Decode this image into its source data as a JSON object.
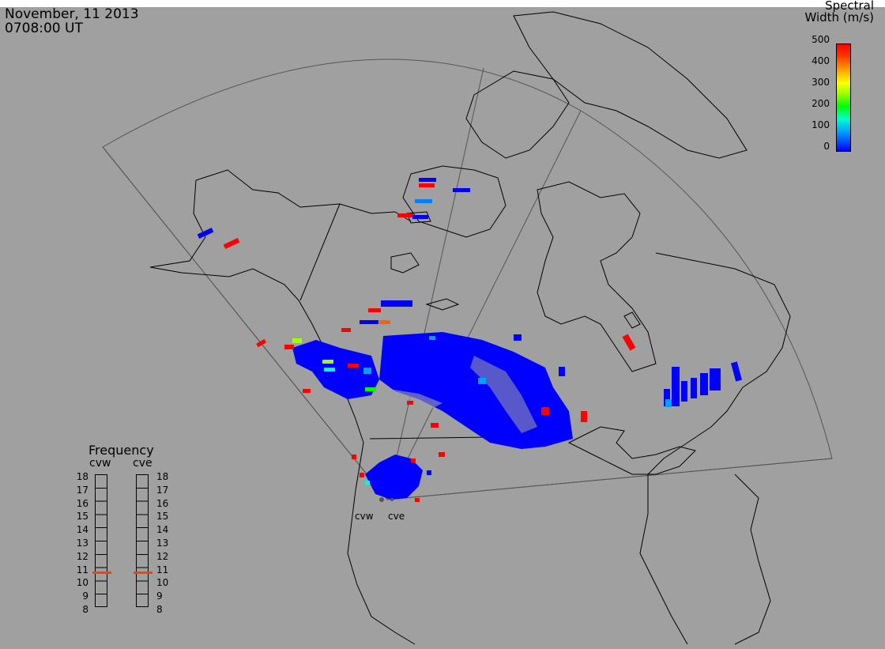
{
  "header": {
    "date": "November, 11 2013",
    "time": "0708:00 UT"
  },
  "colorbar": {
    "title_line1": "Spectral",
    "title_line2": "Width (m/s)",
    "ticks": [
      "500",
      "400",
      "300",
      "200",
      "100",
      "0"
    ],
    "colors": [
      "#0000ff",
      "#00a0ff",
      "#00ffd0",
      "#00ff00",
      "#a0ff00",
      "#ffff00",
      "#ffa000",
      "#ff3000",
      "#ff0000"
    ]
  },
  "frequency": {
    "title": "Frequency",
    "radars": [
      {
        "label": "cvw",
        "value_mhz": 10.6
      },
      {
        "label": "cve",
        "value_mhz": 10.6
      }
    ],
    "ticks": [
      "18",
      "17",
      "16",
      "15",
      "14",
      "13",
      "12",
      "11",
      "10",
      "9",
      "8"
    ],
    "marker_color": "#ff4000"
  },
  "sites": [
    {
      "label": "cvw"
    },
    {
      "label": "cve"
    }
  ],
  "map": {
    "background": "#a0a0a0",
    "coastline_color": "#000000",
    "fov_color": "#555555"
  }
}
